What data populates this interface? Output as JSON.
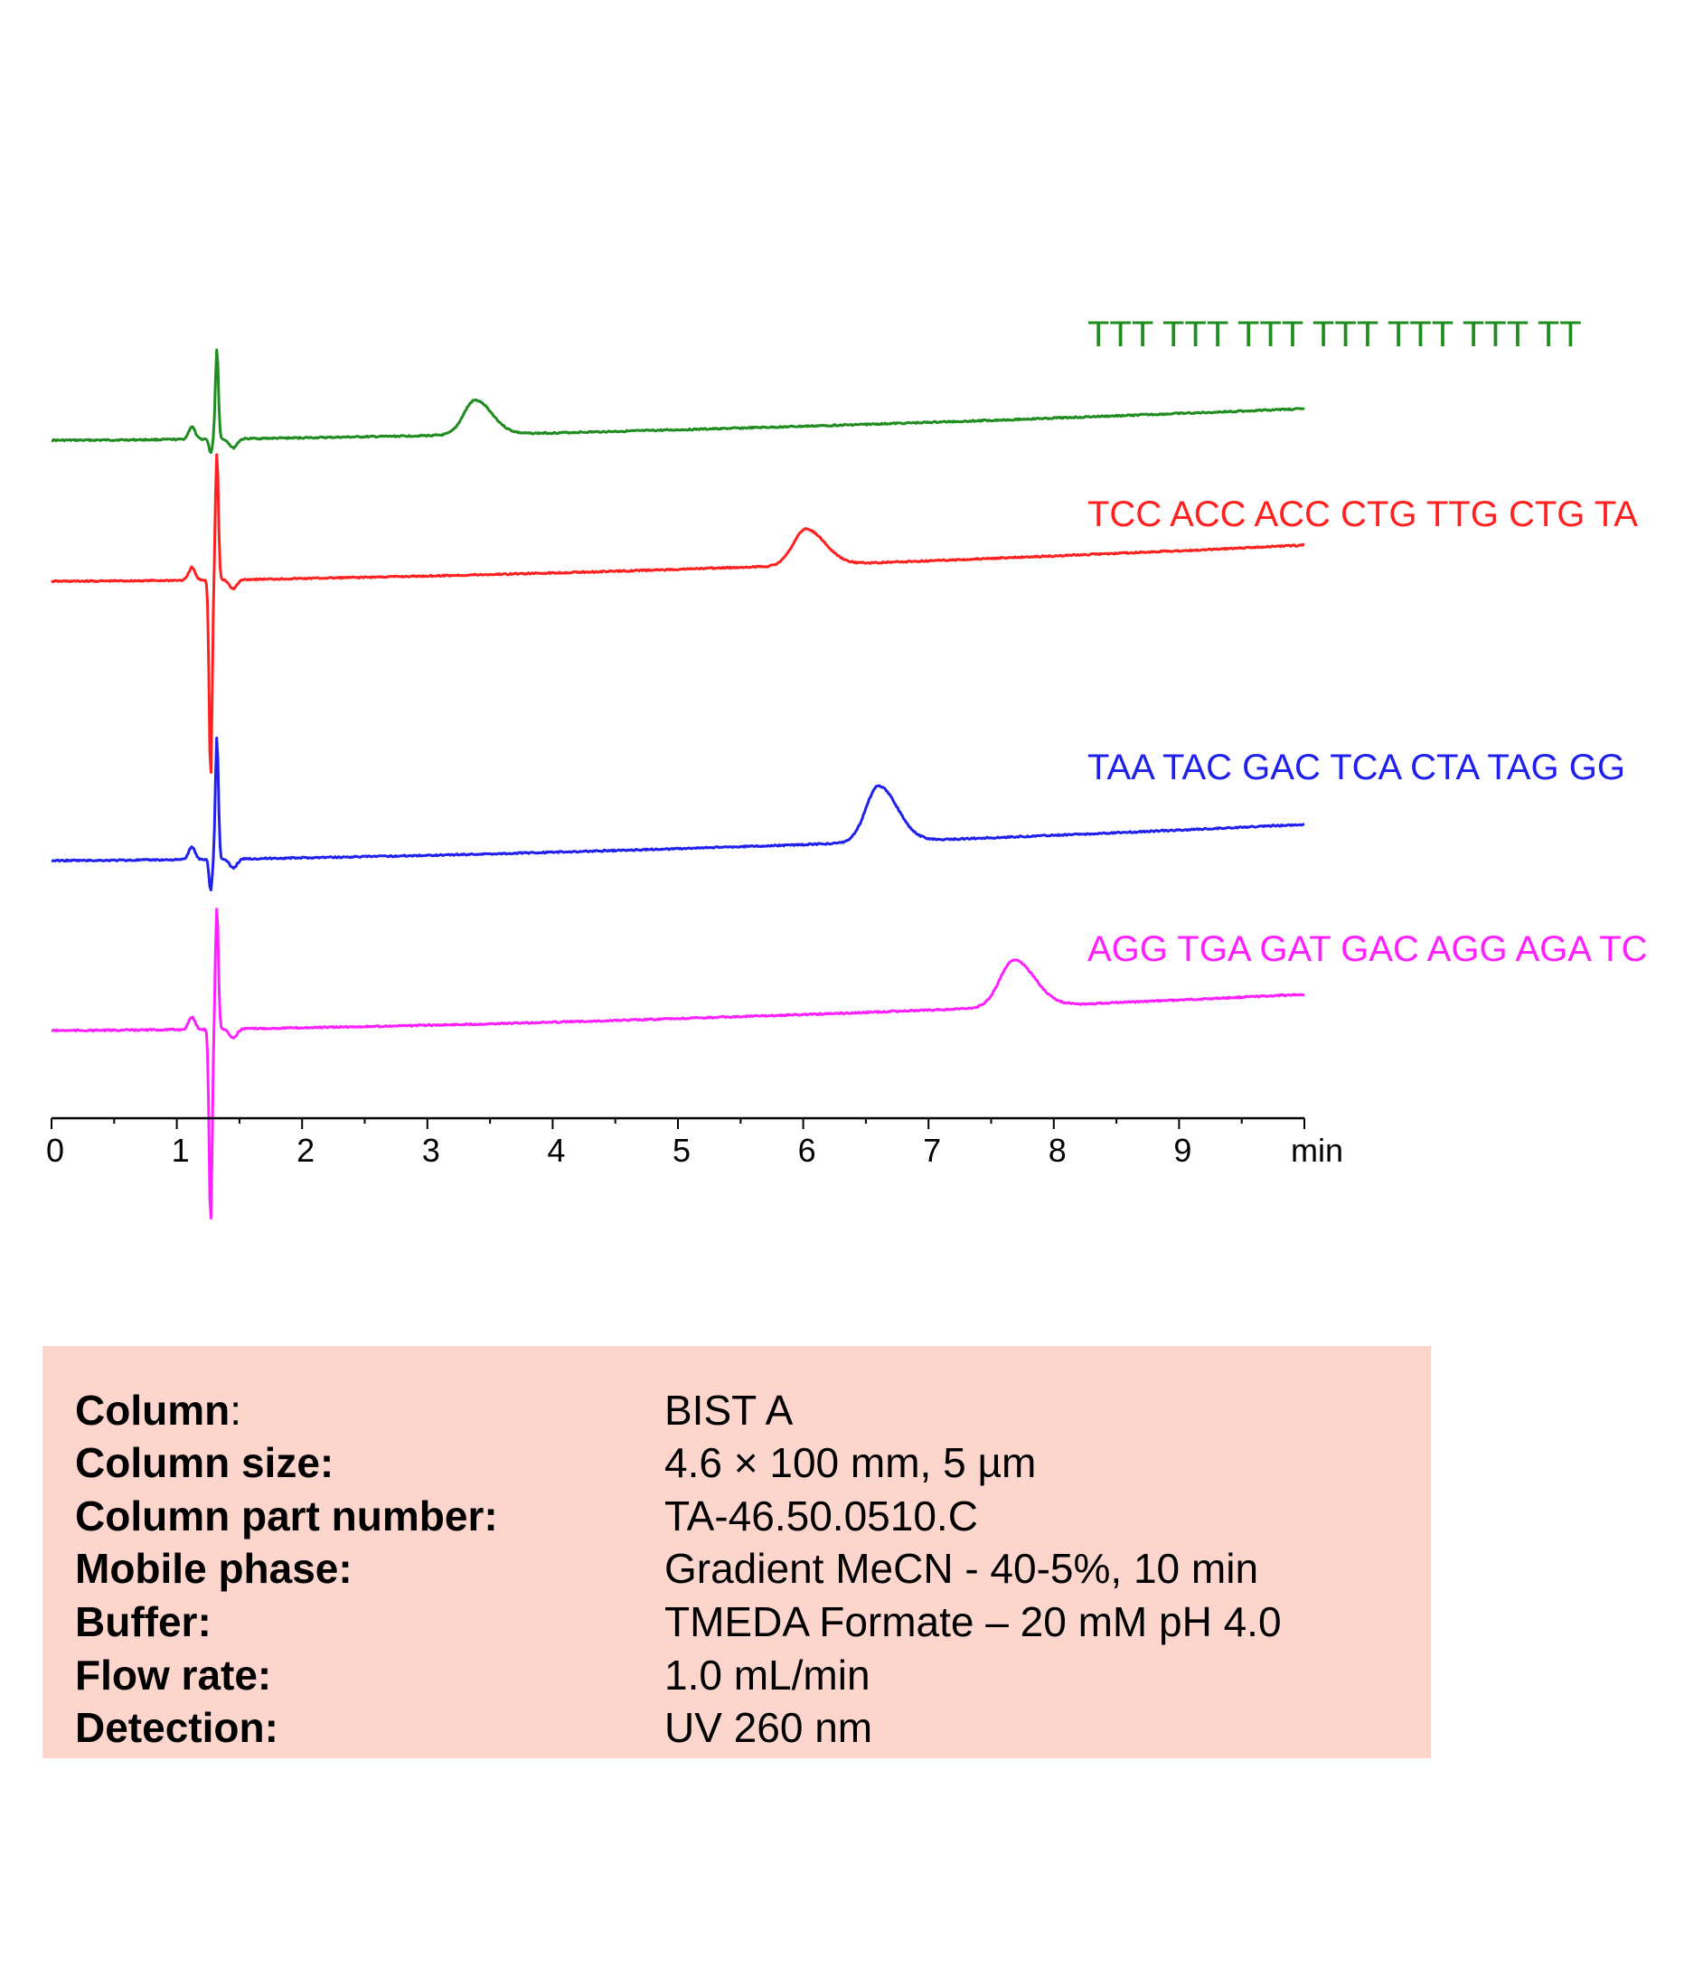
{
  "chart_data": {
    "type": "line",
    "xlabel": "min",
    "xlim": [
      0,
      10
    ],
    "xticks": [
      "0",
      "1",
      "2",
      "3",
      "4",
      "5",
      "6",
      "7",
      "8",
      "9"
    ],
    "grid": false,
    "legend": "inline labels at right of each trace",
    "series": [
      {
        "name": "TTT TTT TTT TTT TTT TTT TT",
        "color": "#1e8c1e",
        "peak_time": 3.38
      },
      {
        "name": "TCC ACC ACC CTG TTG CTG TA",
        "color": "#ff2020",
        "peak_time": 6.02
      },
      {
        "name": "TAA TAC GAC TCA CTA TAG GG",
        "color": "#2020ee",
        "peak_time": 6.6
      },
      {
        "name": "AGG TGA GAT GAC AGG AGA TC",
        "color": "#ff20ff",
        "peak_time": 7.68
      }
    ]
  },
  "conditions": [
    {
      "label": "Column",
      "label_suffix": ":",
      "value": "BIST A"
    },
    {
      "label": "Column size:",
      "label_suffix": "",
      "value": "4.6 × 100 mm, 5 µm"
    },
    {
      "label": "Column part number:",
      "label_suffix": "",
      "value": "TA-46.50.0510.C"
    },
    {
      "label": "Mobile phase:",
      "label_suffix": "",
      "value": "Gradient  MeCN  - 40-5%, 10 min"
    },
    {
      "label": "Buffer:",
      "label_suffix": "",
      "value": "TMEDA Formate  – 20 mM  pH 4.0"
    },
    {
      "label": "Flow rate:",
      "label_suffix": "",
      "value": "1.0 mL/min"
    },
    {
      "label": "Detection:",
      "label_suffix": "",
      "value": "UV 260 nm"
    }
  ]
}
